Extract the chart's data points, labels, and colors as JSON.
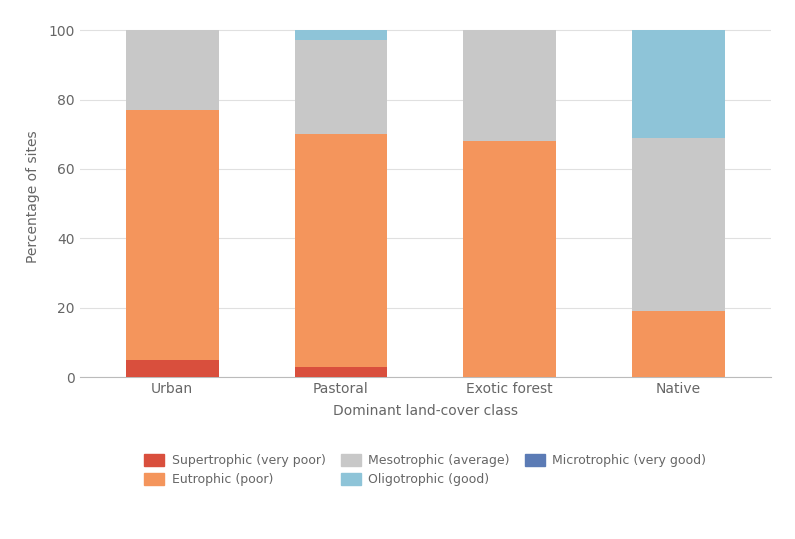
{
  "categories": [
    "Urban",
    "Pastoral",
    "Exotic forest",
    "Native"
  ],
  "series": {
    "Supertrophic (very poor)": [
      5,
      3,
      0,
      0
    ],
    "Eutrophic (poor)": [
      72,
      67,
      68,
      19
    ],
    "Mesotrophic (average)": [
      23,
      27,
      32,
      50
    ],
    "Oligotrophic (good)": [
      0,
      3,
      0,
      31
    ],
    "Microtrophic (very good)": [
      0,
      0,
      0,
      0
    ]
  },
  "colors": {
    "Supertrophic (very poor)": "#d94f3d",
    "Eutrophic (poor)": "#f4955c",
    "Mesotrophic (average)": "#c8c8c8",
    "Oligotrophic (good)": "#8ec4d8",
    "Microtrophic (very good)": "#5b7bb5"
  },
  "xlabel": "Dominant land-cover class",
  "ylabel": "Percentage of sites",
  "ylim": [
    0,
    104
  ],
  "yticks": [
    0,
    20,
    40,
    60,
    80,
    100
  ],
  "bar_width": 0.55,
  "background_color": "#ffffff",
  "grid_color": "#e0e0e0",
  "series_order": [
    "Supertrophic (very poor)",
    "Eutrophic (poor)",
    "Mesotrophic (average)",
    "Oligotrophic (good)",
    "Microtrophic (very good)"
  ],
  "legend_row1": [
    "Supertrophic (very poor)",
    "Eutrophic (poor)",
    "Mesotrophic (average)"
  ],
  "legend_row2": [
    "Oligotrophic (good)",
    "Microtrophic (very good)"
  ],
  "text_color": "#666666",
  "spine_color": "#bbbbbb"
}
